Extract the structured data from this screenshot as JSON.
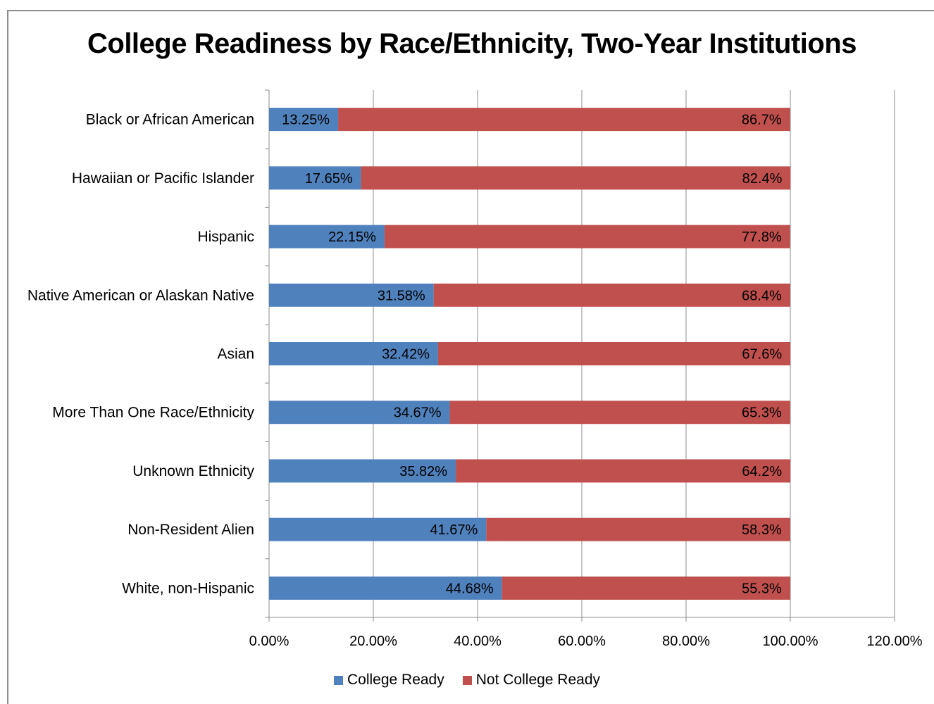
{
  "chart_data": {
    "type": "bar",
    "orientation": "horizontal",
    "stacked": true,
    "title": "College Readiness by Race/Ethnicity, Two-Year Institutions",
    "categories": [
      "Black or African American",
      "Hawaiian or Pacific Islander",
      "Hispanic",
      "Native American or Alaskan Native",
      "Asian",
      "More Than One Race/Ethnicity",
      "Unknown Ethnicity",
      "Non-Resident Alien",
      "White, non-Hispanic"
    ],
    "series": [
      {
        "name": "College Ready",
        "color": "#4f81bd",
        "values": [
          13.25,
          17.65,
          22.15,
          31.58,
          32.42,
          34.67,
          35.82,
          41.67,
          44.68
        ],
        "labels": [
          "13.25%",
          "17.65%",
          "22.15%",
          "31.58%",
          "32.42%",
          "34.67%",
          "35.82%",
          "41.67%",
          "44.68%"
        ]
      },
      {
        "name": "Not College Ready",
        "color": "#c0504d",
        "values": [
          86.7,
          82.4,
          77.8,
          68.4,
          67.6,
          65.3,
          64.2,
          58.3,
          55.3
        ],
        "labels": [
          "86.7%",
          "82.4%",
          "77.8%",
          "68.4%",
          "67.6%",
          "65.3%",
          "64.2%",
          "58.3%",
          "55.3%"
        ]
      }
    ],
    "xlim": [
      0,
      120
    ],
    "xticks": [
      "0.00%",
      "20.00%",
      "40.00%",
      "60.00%",
      "80.00%",
      "100.00%",
      "120.00%"
    ],
    "grid": true,
    "legend": "bottom"
  }
}
